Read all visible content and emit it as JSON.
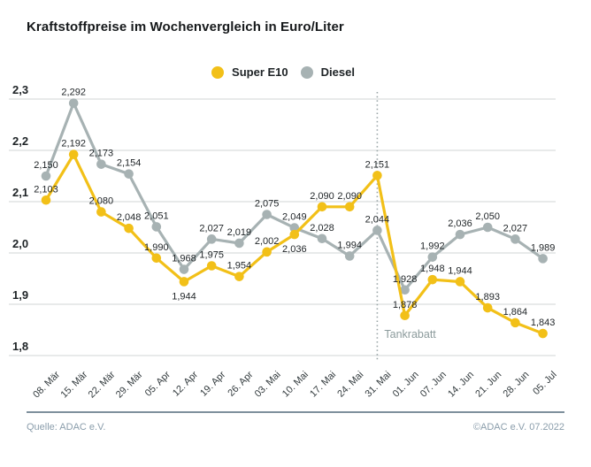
{
  "title": "Kraftstoffpreise im Wochenvergleich in Euro/Liter",
  "legend": {
    "items": [
      {
        "label": "Super E10",
        "color": "#f2c018"
      },
      {
        "label": "Diesel",
        "color": "#a7b2b3"
      }
    ]
  },
  "annotation": {
    "label": "Tankrabatt",
    "category": "31. Mai",
    "category_index": 12,
    "line_style": "dotted",
    "line_color": "#98a4a6",
    "text_color": "#8c9b9c"
  },
  "footer": {
    "source": "Quelle: ADAC e.V.",
    "copyright": "©ADAC e.V.  07.2022"
  },
  "chart_data": {
    "type": "line",
    "title": "Kraftstoffpreise im Wochenvergleich in Euro/Liter",
    "categories": [
      "08. Mär",
      "15. Mär",
      "22. Mär",
      "29. Mär",
      "05. Apr",
      "12. Apr",
      "19. Apr",
      "26. Apr",
      "03. Mai",
      "10. Mai",
      "17. Mai",
      "24. Mai",
      "31. Mai",
      "01. Jun",
      "07. Jun",
      "14. Jun",
      "21. Jun",
      "28. Jun",
      "05. Jul"
    ],
    "series": [
      {
        "name": "Super E10",
        "color": "#f2c018",
        "values": [
          2.103,
          2.192,
          2.08,
          2.048,
          1.99,
          1.944,
          1.975,
          1.954,
          2.002,
          2.036,
          2.09,
          2.09,
          2.151,
          1.878,
          1.948,
          1.944,
          1.893,
          1.864,
          1.843
        ]
      },
      {
        "name": "Diesel",
        "color": "#a7b2b3",
        "values": [
          2.15,
          2.292,
          2.173,
          2.154,
          2.051,
          1.968,
          2.027,
          2.019,
          2.075,
          2.049,
          2.028,
          1.994,
          2.044,
          1.928,
          1.992,
          2.036,
          2.05,
          2.027,
          1.989
        ]
      }
    ],
    "ylim": [
      1.8,
      2.3
    ],
    "ytick_labels": [
      "1,8",
      "1,9",
      "2,0",
      "2,1",
      "2,2",
      "2,3"
    ],
    "value_label_decimals": 3,
    "decimal_separator": ",",
    "grid": true,
    "legend_position": "top-center",
    "grid_color": "#d9ddde",
    "label_color": "#1e2326",
    "axis_label_color": "#333b3e"
  }
}
